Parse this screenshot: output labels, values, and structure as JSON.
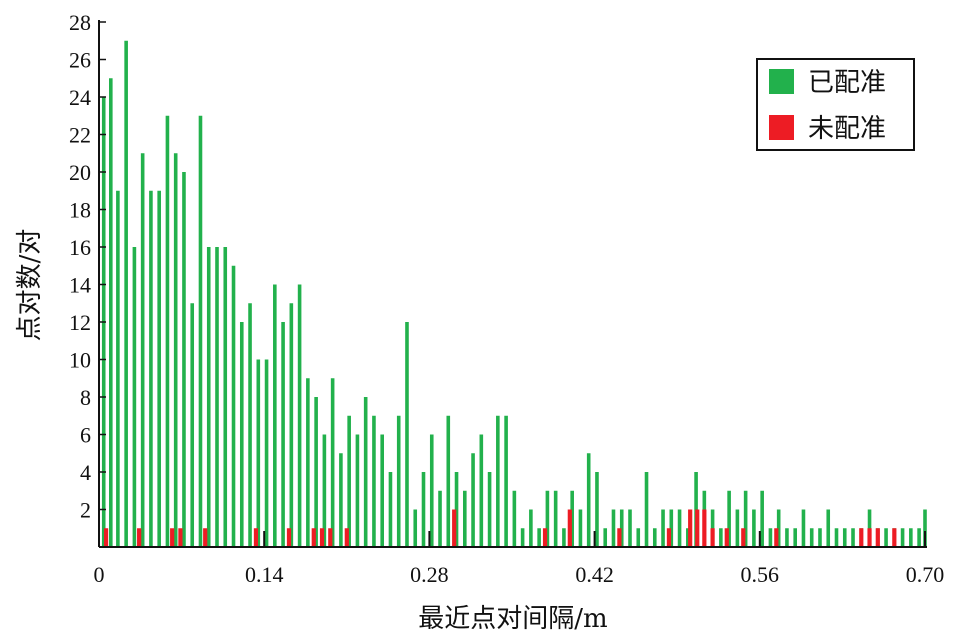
{
  "chart_data": {
    "type": "bar",
    "xlabel": "最近点对间隔/m",
    "ylabel": "点对数/对",
    "xlim": [
      0,
      0.7
    ],
    "ylim": [
      0,
      28
    ],
    "xticks": [
      "0",
      "0.14",
      "0.28",
      "0.42",
      "0.56",
      "0.70"
    ],
    "yticks": [
      "2",
      "4",
      "6",
      "8",
      "10",
      "12",
      "14",
      "16",
      "18",
      "20",
      "22",
      "24",
      "26",
      "28"
    ],
    "legend_position": "top-right",
    "series": [
      {
        "name": "已配准",
        "color": "#22b14c",
        "points": [
          [
            0.004,
            24
          ],
          [
            0.01,
            25
          ],
          [
            0.016,
            19
          ],
          [
            0.023,
            27
          ],
          [
            0.03,
            16
          ],
          [
            0.037,
            21
          ],
          [
            0.044,
            19
          ],
          [
            0.051,
            19
          ],
          [
            0.058,
            23
          ],
          [
            0.065,
            21
          ],
          [
            0.072,
            20
          ],
          [
            0.079,
            13
          ],
          [
            0.086,
            23
          ],
          [
            0.093,
            16
          ],
          [
            0.1,
            16
          ],
          [
            0.107,
            16
          ],
          [
            0.114,
            15
          ],
          [
            0.121,
            12
          ],
          [
            0.128,
            13
          ],
          [
            0.135,
            10
          ],
          [
            0.142,
            10
          ],
          [
            0.149,
            14
          ],
          [
            0.156,
            12
          ],
          [
            0.163,
            13
          ],
          [
            0.17,
            14
          ],
          [
            0.177,
            9
          ],
          [
            0.184,
            8
          ],
          [
            0.191,
            6
          ],
          [
            0.198,
            9
          ],
          [
            0.205,
            5
          ],
          [
            0.212,
            7
          ],
          [
            0.219,
            6
          ],
          [
            0.226,
            8
          ],
          [
            0.233,
            7
          ],
          [
            0.24,
            6
          ],
          [
            0.247,
            4
          ],
          [
            0.254,
            7
          ],
          [
            0.261,
            12
          ],
          [
            0.268,
            2
          ],
          [
            0.275,
            4
          ],
          [
            0.282,
            6
          ],
          [
            0.289,
            3
          ],
          [
            0.296,
            7
          ],
          [
            0.303,
            4
          ],
          [
            0.31,
            3
          ],
          [
            0.317,
            5
          ],
          [
            0.324,
            6
          ],
          [
            0.331,
            4
          ],
          [
            0.338,
            7
          ],
          [
            0.345,
            7
          ],
          [
            0.352,
            3
          ],
          [
            0.359,
            1
          ],
          [
            0.366,
            2
          ],
          [
            0.373,
            1
          ],
          [
            0.38,
            3
          ],
          [
            0.387,
            3
          ],
          [
            0.394,
            1
          ],
          [
            0.401,
            3
          ],
          [
            0.408,
            2
          ],
          [
            0.415,
            5
          ],
          [
            0.422,
            4
          ],
          [
            0.429,
            1
          ],
          [
            0.436,
            2
          ],
          [
            0.443,
            2
          ],
          [
            0.45,
            2
          ],
          [
            0.457,
            1
          ],
          [
            0.464,
            4
          ],
          [
            0.471,
            1
          ],
          [
            0.478,
            2
          ],
          [
            0.485,
            2
          ],
          [
            0.492,
            2
          ],
          [
            0.499,
            1
          ],
          [
            0.506,
            4
          ],
          [
            0.513,
            3
          ],
          [
            0.52,
            2
          ],
          [
            0.527,
            1
          ],
          [
            0.534,
            3
          ],
          [
            0.541,
            2
          ],
          [
            0.548,
            3
          ],
          [
            0.555,
            2
          ],
          [
            0.562,
            3
          ],
          [
            0.569,
            1
          ],
          [
            0.576,
            2
          ],
          [
            0.583,
            1
          ],
          [
            0.59,
            1
          ],
          [
            0.597,
            2
          ],
          [
            0.604,
            1
          ],
          [
            0.611,
            1
          ],
          [
            0.618,
            2
          ],
          [
            0.625,
            1
          ],
          [
            0.632,
            1
          ],
          [
            0.639,
            1
          ],
          [
            0.646,
            1
          ],
          [
            0.653,
            2
          ],
          [
            0.66,
            1
          ],
          [
            0.667,
            1
          ],
          [
            0.674,
            1
          ],
          [
            0.681,
            1
          ],
          [
            0.688,
            1
          ],
          [
            0.695,
            1
          ],
          [
            0.7,
            2
          ]
        ]
      },
      {
        "name": "未配准",
        "color": "#ed1c24",
        "points": [
          [
            0.006,
            1
          ],
          [
            0.034,
            1
          ],
          [
            0.062,
            1
          ],
          [
            0.069,
            1
          ],
          [
            0.09,
            1
          ],
          [
            0.133,
            1
          ],
          [
            0.161,
            1
          ],
          [
            0.182,
            1
          ],
          [
            0.189,
            1
          ],
          [
            0.196,
            1
          ],
          [
            0.21,
            1
          ],
          [
            0.301,
            2
          ],
          [
            0.378,
            1
          ],
          [
            0.399,
            2
          ],
          [
            0.441,
            1
          ],
          [
            0.483,
            1
          ],
          [
            0.501,
            2
          ],
          [
            0.507,
            2
          ],
          [
            0.513,
            2
          ],
          [
            0.52,
            1
          ],
          [
            0.532,
            1
          ],
          [
            0.546,
            1
          ],
          [
            0.574,
            1
          ],
          [
            0.646,
            1
          ],
          [
            0.653,
            1
          ],
          [
            0.66,
            1
          ],
          [
            0.674,
            1
          ]
        ]
      }
    ]
  }
}
